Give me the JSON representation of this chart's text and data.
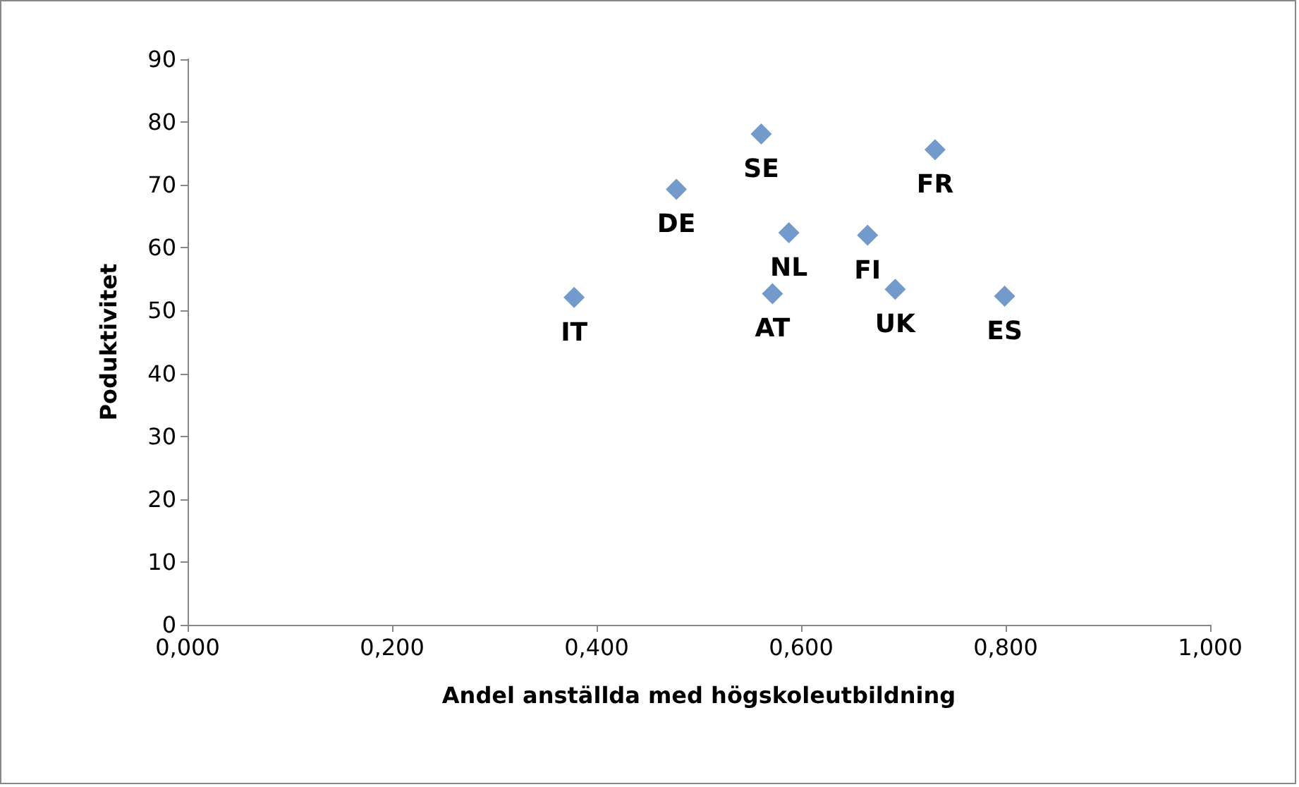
{
  "chart_data": {
    "type": "scatter",
    "xlabel": "Andel anställda med högskoleutbildning",
    "ylabel": "Poduktivitet",
    "x": [
      0.378,
      0.478,
      0.561,
      0.731,
      0.588,
      0.665,
      0.572,
      0.692,
      0.799
    ],
    "series": [
      {
        "color": "#4f81bd",
        "values": [
          52.1,
          69.3,
          78.1,
          75.6,
          62.4,
          62.0,
          52.7,
          53.4,
          52.3
        ]
      }
    ],
    "annotations": [
      {
        "text": "IT",
        "x": 0.378,
        "y": 52.1
      },
      {
        "text": "DE",
        "x": 0.478,
        "y": 69.3
      },
      {
        "text": "SE",
        "x": 0.561,
        "y": 78.1
      },
      {
        "text": "FR",
        "x": 0.731,
        "y": 75.6
      },
      {
        "text": "NL",
        "x": 0.588,
        "y": 62.4
      },
      {
        "text": "FI",
        "x": 0.665,
        "y": 62.0
      },
      {
        "text": "AT",
        "x": 0.572,
        "y": 52.7
      },
      {
        "text": "UK",
        "x": 0.692,
        "y": 53.4
      },
      {
        "text": "ES",
        "x": 0.799,
        "y": 52.3
      }
    ],
    "xlim": [
      0,
      1
    ],
    "xticks": [
      {
        "value": 0,
        "label": "0,000"
      },
      {
        "value": 0.2,
        "label": "0,200"
      },
      {
        "value": 0.4,
        "label": "0,400"
      },
      {
        "value": 0.6,
        "label": "0,600"
      },
      {
        "value": 0.8,
        "label": "0,800"
      },
      {
        "value": 1,
        "label": "1,000"
      }
    ],
    "ylim": [
      0,
      90
    ],
    "yticks": [
      0,
      10,
      20,
      30,
      40,
      50,
      60,
      70,
      80,
      90
    ],
    "marker": "diamond"
  }
}
